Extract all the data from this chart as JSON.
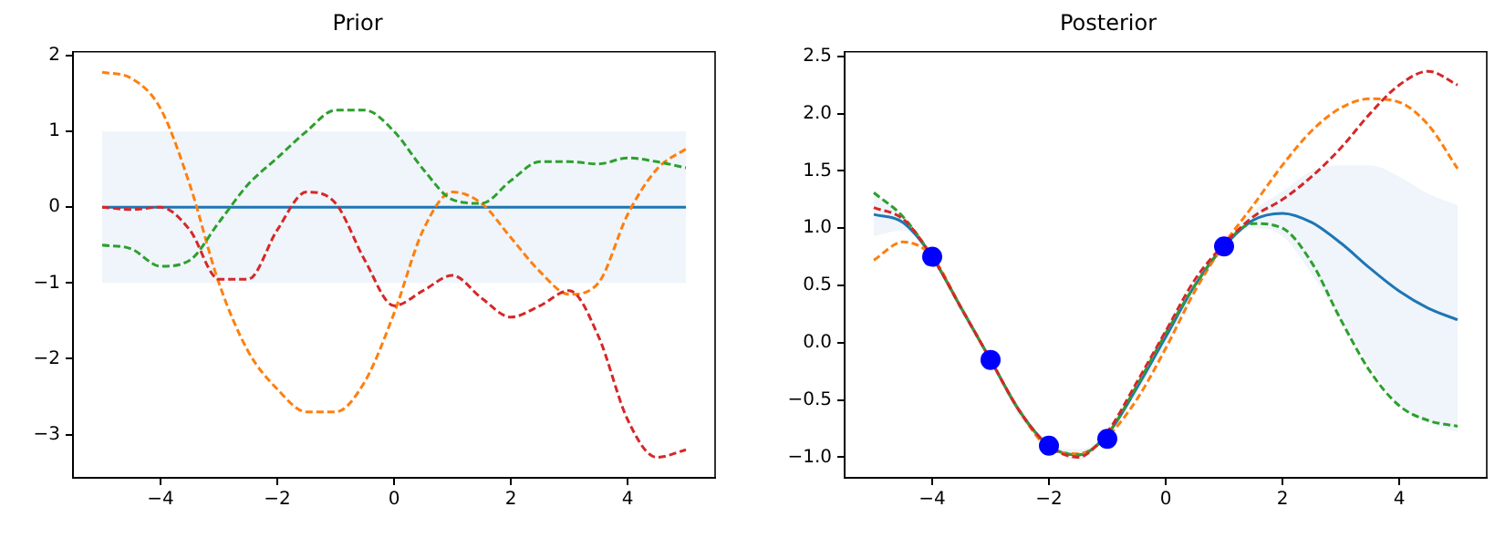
{
  "chart_data": [
    {
      "type": "line",
      "title": "Prior",
      "xlim": [
        -5.5,
        5.5
      ],
      "ylim": [
        -3.57,
        2.05
      ],
      "xticks": [
        -4,
        -2,
        0,
        2,
        4
      ],
      "yticks": [
        {
          "value": -3,
          "label": "−3"
        },
        {
          "value": -2,
          "label": "−2"
        },
        {
          "value": -1,
          "label": "−1"
        },
        0,
        1,
        2
      ],
      "x": [
        -5,
        -4.5,
        -4,
        -3.5,
        -3,
        -2.5,
        -2,
        -1.5,
        -1,
        -0.5,
        0,
        0.5,
        1,
        1.5,
        2,
        2.5,
        3,
        3.5,
        4,
        4.5,
        5
      ],
      "grid": false,
      "legend": false,
      "marker": "none",
      "series": [
        {
          "color": "#1f77b4",
          "line_style": "solid",
          "values": [
            0,
            0,
            0,
            0,
            0,
            0,
            0,
            0,
            0,
            0,
            0,
            0,
            0,
            0,
            0,
            0,
            0,
            0,
            0,
            0,
            0
          ],
          "lower": [
            -1,
            -1,
            -1,
            -1,
            -1,
            -1,
            -1,
            -1,
            -1,
            -1,
            -1,
            -1,
            -1,
            -1,
            -1,
            -1,
            -1,
            -1,
            -1,
            -1,
            -1
          ],
          "upper": [
            1,
            1,
            1,
            1,
            1,
            1,
            1,
            1,
            1,
            1,
            1,
            1,
            1,
            1,
            1,
            1,
            1,
            1,
            1,
            1,
            1
          ]
        },
        {
          "color": "#ff7f0e",
          "line_style": "dashed",
          "values": [
            1.78,
            1.7,
            1.3,
            0.3,
            -1.0,
            -1.9,
            -2.4,
            -2.7,
            -2.7,
            -2.3,
            -1.4,
            -0.3,
            0.2,
            0.05,
            -0.4,
            -0.85,
            -1.15,
            -1.0,
            -0.1,
            0.5,
            0.77
          ]
        },
        {
          "color": "#2ca02c",
          "line_style": "dashed",
          "values": [
            -0.5,
            -0.55,
            -0.78,
            -0.7,
            -0.2,
            0.3,
            0.65,
            1.0,
            1.28,
            1.28,
            1.0,
            0.5,
            0.1,
            0.05,
            0.35,
            0.6,
            0.6,
            0.57,
            0.65,
            0.6,
            0.52
          ]
        },
        {
          "color": "#d62728",
          "line_style": "dashed",
          "values": [
            0,
            -0.03,
            0,
            -0.3,
            -0.95,
            -0.95,
            -0.3,
            0.2,
            0.05,
            -0.7,
            -1.3,
            -1.1,
            -0.9,
            -1.2,
            -1.45,
            -1.3,
            -1.1,
            -1.7,
            -2.8,
            -3.3,
            -3.2
          ]
        }
      ]
    },
    {
      "type": "line",
      "title": "Posterior",
      "xlim": [
        -5.5,
        5.5
      ],
      "ylim": [
        -1.18,
        2.54
      ],
      "xticks": [
        -4,
        -2,
        0,
        2,
        4
      ],
      "yticks": [
        {
          "value": -1,
          "label": "−1.0"
        },
        {
          "value": -0.5,
          "label": "−0.5"
        },
        {
          "value": 0,
          "label": "0.0"
        },
        0.5,
        {
          "value": 1,
          "label": "1.0"
        },
        1.5,
        {
          "value": 2,
          "label": "2.0"
        },
        2.5
      ],
      "x": [
        -5,
        -4.5,
        -4,
        -3.5,
        -3,
        -2.5,
        -2,
        -1.5,
        -1,
        -0.5,
        0,
        0.5,
        1,
        1.5,
        2,
        2.5,
        3,
        3.5,
        4,
        4.5,
        5
      ],
      "grid": false,
      "legend": false,
      "marker": "none",
      "series": [
        {
          "color": "#1f77b4",
          "line_style": "solid",
          "values": [
            1.12,
            1.05,
            0.75,
            0.3,
            -0.15,
            -0.6,
            -0.9,
            -0.98,
            -0.8,
            -0.4,
            0.05,
            0.5,
            0.84,
            1.07,
            1.13,
            1.05,
            0.87,
            0.65,
            0.45,
            0.3,
            0.2
          ],
          "lower": [
            0.93,
            0.98,
            0.74,
            0.25,
            -0.16,
            -0.65,
            -0.91,
            -1.03,
            -0.81,
            -0.45,
            -0.03,
            0.44,
            0.83,
            1.0,
            0.93,
            0.6,
            0.2,
            -0.2,
            -0.55,
            -0.7,
            -0.78
          ],
          "upper": [
            1.3,
            1.12,
            0.76,
            0.35,
            -0.14,
            -0.55,
            -0.89,
            -0.93,
            -0.79,
            -0.35,
            0.13,
            0.56,
            0.85,
            1.15,
            1.32,
            1.5,
            1.55,
            1.55,
            1.45,
            1.3,
            1.2
          ]
        },
        {
          "color": "#ff7f0e",
          "line_style": "dashed",
          "values": [
            0.72,
            0.88,
            0.75,
            0.3,
            -0.15,
            -0.6,
            -0.92,
            -0.97,
            -0.82,
            -0.5,
            -0.05,
            0.45,
            0.86,
            1.2,
            1.55,
            1.85,
            2.05,
            2.13,
            2.1,
            1.9,
            1.52
          ]
        },
        {
          "color": "#2ca02c",
          "line_style": "dashed",
          "values": [
            1.31,
            1.1,
            0.75,
            0.3,
            -0.15,
            -0.6,
            -0.9,
            -0.98,
            -0.8,
            -0.38,
            0.08,
            0.5,
            0.85,
            1.04,
            1.0,
            0.7,
            0.2,
            -0.25,
            -0.55,
            -0.68,
            -0.73
          ]
        },
        {
          "color": "#d62728",
          "line_style": "dashed",
          "values": [
            1.18,
            1.08,
            0.75,
            0.3,
            -0.15,
            -0.6,
            -0.9,
            -1.0,
            -0.78,
            -0.35,
            0.1,
            0.55,
            0.86,
            1.1,
            1.25,
            1.45,
            1.7,
            2.0,
            2.25,
            2.37,
            2.25
          ]
        },
        {
          "type": "scatter",
          "color": "#0000ff",
          "marker": "circle",
          "x": [
            -4,
            -3,
            -2,
            -1,
            1
          ],
          "values": [
            0.75,
            -0.15,
            -0.9,
            -0.84,
            0.84
          ]
        }
      ]
    }
  ]
}
